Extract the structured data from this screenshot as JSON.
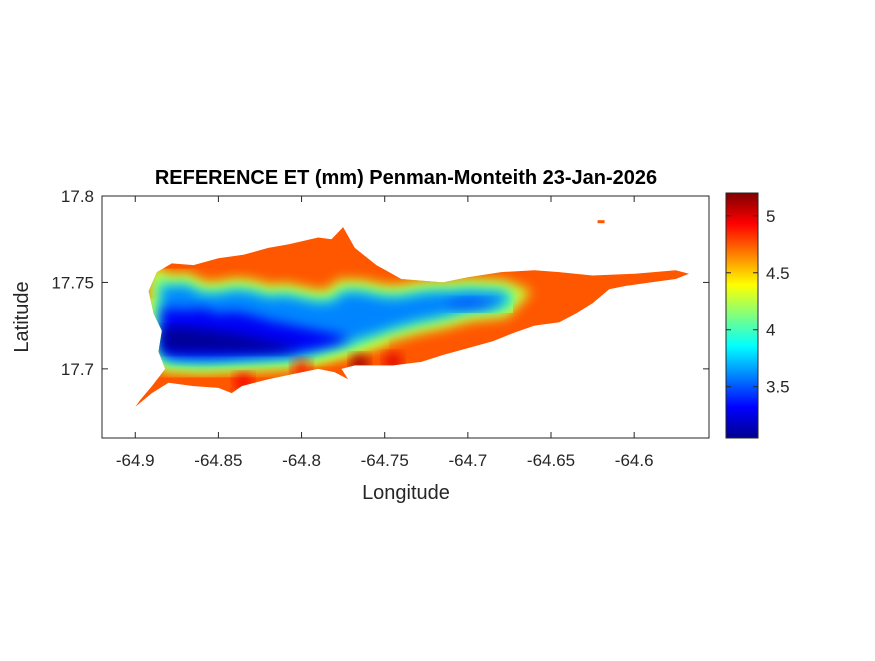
{
  "chart_data": {
    "type": "heatmap",
    "title": "REFERENCE ET (mm) Penman-Monteith 23-Jan-2026",
    "xlabel": "Longitude",
    "ylabel": "Latitude",
    "xlim": [
      -64.92,
      -64.555
    ],
    "ylim": [
      17.66,
      17.8
    ],
    "xticks": [
      -64.9,
      -64.85,
      -64.8,
      -64.75,
      -64.7,
      -64.65,
      -64.6
    ],
    "xtick_labels": [
      "-64.9",
      "-64.85",
      "-64.8",
      "-64.75",
      "-64.7",
      "-64.65",
      "-64.6"
    ],
    "yticks": [
      17.7,
      17.75,
      17.8
    ],
    "ytick_labels": [
      "17.7",
      "17.75",
      "17.8"
    ],
    "colormap": "jet",
    "clim": [
      3.05,
      5.2
    ],
    "colorbar_ticks": [
      3.5,
      4,
      4.5,
      5
    ],
    "colorbar_tick_labels": [
      "3.5",
      "4",
      "4.5",
      "5"
    ],
    "grid": false,
    "legend": "colorbar-right",
    "zones": [
      {
        "ring": [
          [
            -64.884,
            17.749
          ],
          [
            -64.88,
            17.747
          ],
          [
            -64.87,
            17.748
          ],
          [
            -64.86,
            17.743
          ],
          [
            -64.85,
            17.743
          ],
          [
            -64.84,
            17.745
          ],
          [
            -64.83,
            17.744
          ],
          [
            -64.82,
            17.741
          ],
          [
            -64.81,
            17.742
          ],
          [
            -64.8,
            17.74
          ],
          [
            -64.79,
            17.738
          ],
          [
            -64.78,
            17.739
          ],
          [
            -64.775,
            17.744
          ],
          [
            -64.765,
            17.744
          ],
          [
            -64.75,
            17.741
          ],
          [
            -64.74,
            17.741
          ],
          [
            -64.73,
            17.743
          ],
          [
            -64.72,
            17.744
          ],
          [
            -64.71,
            17.744
          ],
          [
            -64.7,
            17.745
          ],
          [
            -64.68,
            17.744
          ],
          [
            -64.675,
            17.742
          ],
          [
            -64.68,
            17.737
          ],
          [
            -64.69,
            17.736
          ],
          [
            -64.7,
            17.735
          ],
          [
            -64.715,
            17.731
          ],
          [
            -64.73,
            17.728
          ],
          [
            -64.745,
            17.724
          ],
          [
            -64.76,
            17.719
          ],
          [
            -64.775,
            17.715
          ],
          [
            -64.79,
            17.711
          ],
          [
            -64.805,
            17.707
          ],
          [
            -64.82,
            17.706
          ],
          [
            -64.84,
            17.705
          ],
          [
            -64.86,
            17.704
          ],
          [
            -64.88,
            17.705
          ],
          [
            -64.884,
            17.71
          ],
          [
            -64.884,
            17.73
          ]
        ],
        "value": 3.6
      },
      {
        "ring": [
          [
            -64.884,
            17.735
          ],
          [
            -64.87,
            17.734
          ],
          [
            -64.86,
            17.735
          ],
          [
            -64.85,
            17.732
          ],
          [
            -64.84,
            17.733
          ],
          [
            -64.83,
            17.731
          ],
          [
            -64.82,
            17.728
          ],
          [
            -64.81,
            17.726
          ],
          [
            -64.8,
            17.724
          ],
          [
            -64.79,
            17.722
          ],
          [
            -64.78,
            17.72
          ],
          [
            -64.77,
            17.717
          ],
          [
            -64.78,
            17.714
          ],
          [
            -64.795,
            17.711
          ],
          [
            -64.81,
            17.709
          ],
          [
            -64.83,
            17.708
          ],
          [
            -64.85,
            17.707
          ],
          [
            -64.87,
            17.707
          ],
          [
            -64.884,
            17.708
          ]
        ],
        "value": 3.3
      },
      {
        "ring": [
          [
            -64.884,
            17.724
          ],
          [
            -64.87,
            17.724
          ],
          [
            -64.855,
            17.722
          ],
          [
            -64.84,
            17.72
          ],
          [
            -64.825,
            17.717
          ],
          [
            -64.81,
            17.714
          ],
          [
            -64.8,
            17.712
          ],
          [
            -64.815,
            17.71
          ],
          [
            -64.835,
            17.71
          ],
          [
            -64.855,
            17.71
          ],
          [
            -64.875,
            17.71
          ],
          [
            -64.884,
            17.711
          ]
        ],
        "value": 3.1
      },
      {
        "ring": [
          [
            -64.7,
            17.741
          ],
          [
            -64.69,
            17.74
          ],
          [
            -64.68,
            17.738
          ],
          [
            -64.69,
            17.735
          ],
          [
            -64.7,
            17.734
          ],
          [
            -64.71,
            17.735
          ],
          [
            -64.715,
            17.738
          ]
        ],
        "value": 3.5
      }
    ]
  }
}
